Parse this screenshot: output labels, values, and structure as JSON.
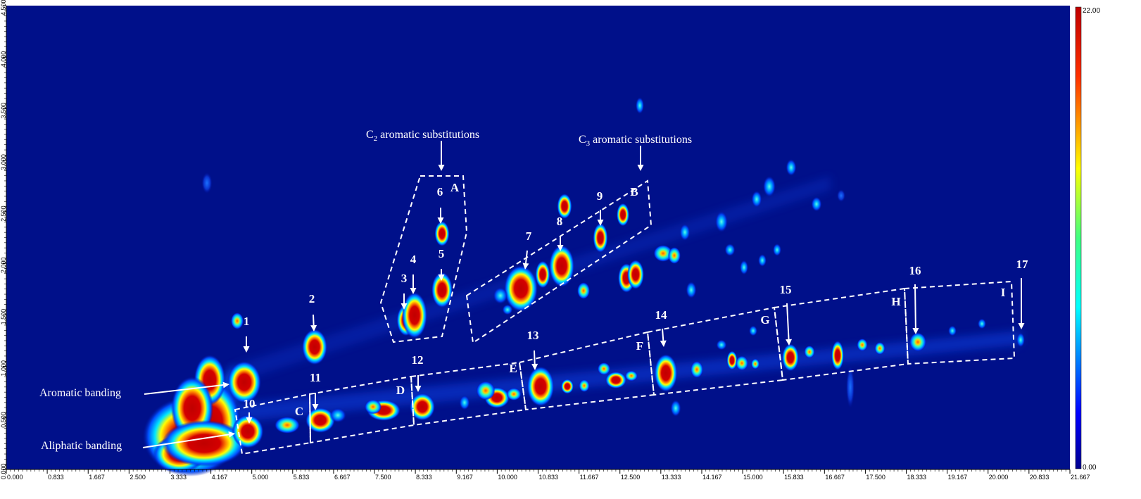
{
  "chart_data": {
    "type": "heatmap",
    "title": "",
    "xlabel": "",
    "ylabel": "",
    "xlim": [
      0,
      21.667
    ],
    "ylim": [
      0,
      4.5
    ],
    "x_ticks": [
      "0.000",
      "0.833",
      "1.667",
      "2.500",
      "3.333",
      "4.167",
      "5.000",
      "5.833",
      "6.667",
      "7.500",
      "8.333",
      "9.167",
      "10.000",
      "10.833",
      "11.667",
      "12.500",
      "13.333",
      "14.167",
      "15.000",
      "15.833",
      "16.667",
      "17.500",
      "18.333",
      "19.167",
      "20.000",
      "20.833",
      "21.667"
    ],
    "y_ticks": [
      "0.000",
      "0.500",
      "1.000",
      "1.500",
      "2.000",
      "2.500",
      "3.000",
      "3.500",
      "4.000",
      "4.500"
    ],
    "colorbar": {
      "min": 0.0,
      "max": 22.0,
      "min_label": "0.00",
      "max_label": "22.00",
      "colormap": "jet"
    },
    "background_color": "#00108a",
    "peaks": [
      {
        "label": "1",
        "x": 4.75,
        "y": 1.0
      },
      {
        "label": "2",
        "x": 6.05,
        "y": 1.28
      },
      {
        "label": "3",
        "x": 7.95,
        "y": 1.5
      },
      {
        "label": "4",
        "x": 8.1,
        "y": 1.55
      },
      {
        "label": "5",
        "x": 8.65,
        "y": 1.9
      },
      {
        "label": "6",
        "x": 8.65,
        "y": 2.55
      },
      {
        "label": "7",
        "x": 10.3,
        "y": 1.9
      },
      {
        "label": "8",
        "x": 11.05,
        "y": 2.1
      },
      {
        "label": "9",
        "x": 11.85,
        "y": 2.55
      },
      {
        "label": "10",
        "x": 4.75,
        "y": 0.3
      },
      {
        "label": "11",
        "x": 6.2,
        "y": 0.45
      },
      {
        "label": "12",
        "x": 8.2,
        "y": 0.65
      },
      {
        "label": "13",
        "x": 10.5,
        "y": 0.9
      },
      {
        "label": "14",
        "x": 13.1,
        "y": 1.0
      },
      {
        "label": "15",
        "x": 15.45,
        "y": 1.15
      },
      {
        "label": "16",
        "x": 18.05,
        "y": 1.3
      },
      {
        "label": "17",
        "x": 20.3,
        "y": 1.35
      }
    ],
    "regions": [
      "A",
      "B",
      "C",
      "D",
      "E",
      "F",
      "G",
      "H",
      "I"
    ],
    "annotations": {
      "c2": {
        "prefix": "C",
        "sub": "2",
        "suffix": " aromatic substitutions"
      },
      "c3": {
        "prefix": "C",
        "sub": "3",
        "suffix": " aromatic substitutions"
      },
      "aromatic": "Aromatic banding",
      "aliphatic": "Aliphatic banding"
    }
  }
}
